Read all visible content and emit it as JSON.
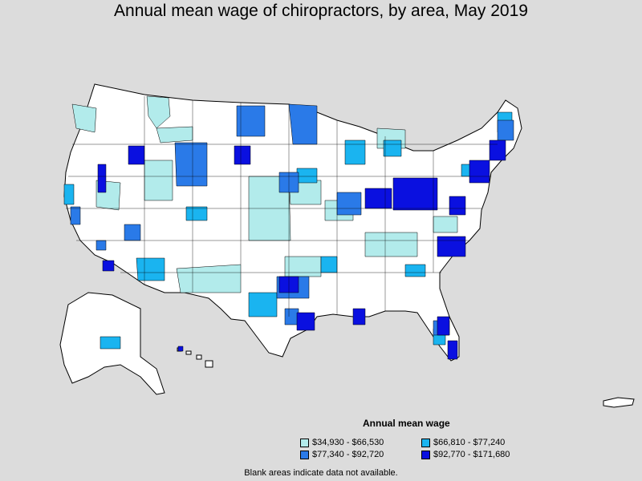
{
  "title": "Annual mean wage of chiropractors, by area, May 2019",
  "legend": {
    "title": "Annual mean wage",
    "items": [
      {
        "label": "$34,930 - $66,530",
        "color": "#b2ebeb"
      },
      {
        "label": "$66,810 - $77,240",
        "color": "#1ab4f0"
      },
      {
        "label": "$77,340 - $92,720",
        "color": "#2a7ae8"
      },
      {
        "label": "$92,770 - $171,680",
        "color": "#0a10e0"
      }
    ]
  },
  "footnote": "Blank areas indicate data not available.",
  "colors": {
    "background": "#dcdcdc",
    "land": "#ffffff",
    "border": "#000000",
    "q1": "#b2ebeb",
    "q2": "#1ab4f0",
    "q3": "#2a7ae8",
    "q4": "#0a10e0"
  }
}
